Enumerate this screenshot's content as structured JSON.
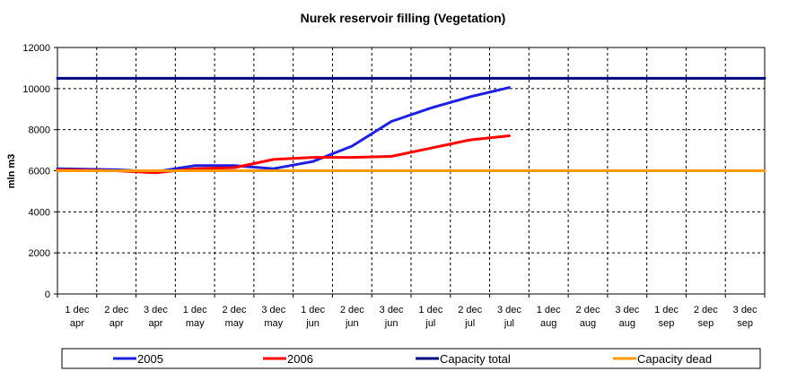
{
  "chart_data": {
    "type": "line",
    "title": "Nurek reservoir filling (Vegetation)",
    "xlabel": "",
    "ylabel": "mln m3",
    "ylim": [
      0,
      12000
    ],
    "yticks": [
      0,
      2000,
      4000,
      6000,
      8000,
      10000,
      12000
    ],
    "grid": true,
    "legend_position": "bottom",
    "categories": [
      [
        "1 dec",
        "apr"
      ],
      [
        "2 dec",
        "apr"
      ],
      [
        "3 dec",
        "apr"
      ],
      [
        "1 dec",
        "may"
      ],
      [
        "2 dec",
        "may"
      ],
      [
        "3 dec",
        "may"
      ],
      [
        "1 dec",
        "jun"
      ],
      [
        "2 dec",
        "jun"
      ],
      [
        "3 dec",
        "jun"
      ],
      [
        "1 dec",
        "jul"
      ],
      [
        "2 dec",
        "jul"
      ],
      [
        "3 dec",
        "jul"
      ],
      [
        "1 dec",
        "aug"
      ],
      [
        "2 dec",
        "aug"
      ],
      [
        "3 dec",
        "aug"
      ],
      [
        "1 dec",
        "sep"
      ],
      [
        "2 dec",
        "sep"
      ],
      [
        "3 dec",
        "sep"
      ]
    ],
    "series": [
      {
        "name": "2005",
        "color": "#1f1fe0",
        "values": [
          6100,
          6050,
          5950,
          6250,
          6250,
          6100,
          6450,
          7200,
          8400,
          9050,
          9600,
          10050,
          null,
          null,
          null,
          null,
          null,
          null
        ]
      },
      {
        "name": "2006",
        "color": "#ff0000",
        "values": [
          6050,
          6000,
          5900,
          6100,
          6150,
          6550,
          6650,
          6650,
          6700,
          7100,
          7500,
          7700,
          null,
          null,
          null,
          null,
          null,
          null
        ]
      },
      {
        "name": "Capacity total",
        "color": "#000080",
        "values": [
          10500,
          10500,
          10500,
          10500,
          10500,
          10500,
          10500,
          10500,
          10500,
          10500,
          10500,
          10500,
          10500,
          10500,
          10500,
          10500,
          10500,
          10500
        ]
      },
      {
        "name": "Capacity dead",
        "color": "#ff9900",
        "values": [
          6000,
          6000,
          6000,
          6000,
          6000,
          6000,
          6000,
          6000,
          6000,
          6000,
          6000,
          6000,
          6000,
          6000,
          6000,
          6000,
          6000,
          6000
        ]
      }
    ]
  }
}
